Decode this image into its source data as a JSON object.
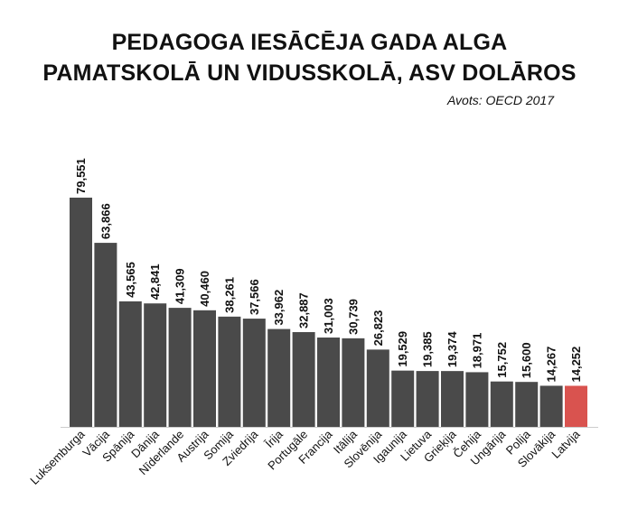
{
  "chart_data": {
    "type": "bar",
    "title_line1": "PEDAGOGA IESĀCĒJA GADA ALGA",
    "title_line2": "PAMATSKOLĀ UN VIDUSSKOLĀ, ASV DOLĀROS",
    "source": "Avots: OECD 2017",
    "xlabel": "",
    "ylabel": "",
    "ylim": [
      0,
      80000
    ],
    "categories": [
      "Luksemburga",
      "Vācija",
      "Spānija",
      "Dānija",
      "Nīderlande",
      "Austrija",
      "Somija",
      "Zviedrija",
      "Īrija",
      "Portugāle",
      "Francija",
      "Itālija",
      "Slovēnija",
      "Igaunija",
      "Lietuva",
      "Grieķija",
      "Čehija",
      "Ungārija",
      "Polija",
      "Slovākija",
      "Latvija"
    ],
    "values": [
      79551,
      63866,
      43565,
      42841,
      41309,
      40460,
      38261,
      37566,
      33962,
      32887,
      31003,
      30739,
      26823,
      19529,
      19385,
      19374,
      18971,
      15752,
      15600,
      14267,
      14252
    ],
    "value_labels": [
      "79,551",
      "63,866",
      "43,565",
      "42,841",
      "41,309",
      "40,460",
      "38,261",
      "37,566",
      "33,962",
      "32,887",
      "31,003",
      "30,739",
      "26,823",
      "19,529",
      "19,385",
      "19,374",
      "18,971",
      "15,752",
      "15,600",
      "14,267",
      "14,252"
    ],
    "colors": {
      "default": "#4a4a4a",
      "highlight": "#d9534f",
      "axis": "#cccccc"
    },
    "highlight_category": "Latvija",
    "grid": false,
    "legend": "none"
  }
}
